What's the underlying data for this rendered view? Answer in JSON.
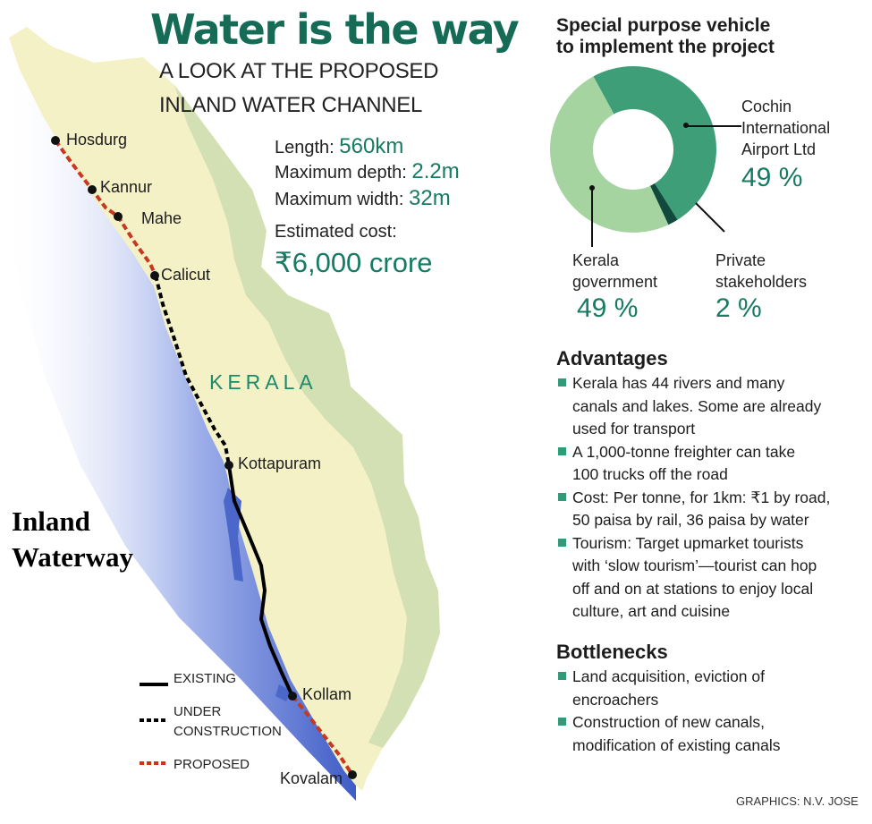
{
  "header": {
    "title": "Water is the way",
    "subtitle_line1": "A LOOK AT THE PROPOSED",
    "subtitle_line2": "INLAND WATER CHANNEL"
  },
  "stats": {
    "length_label": "Length:",
    "length_value": "560km",
    "depth_label": "Maximum depth:",
    "depth_value": "2.2m",
    "width_label": "Maximum width:",
    "width_value": "32m",
    "cost_label": "Estimated cost:",
    "cost_value": "₹6,000 crore"
  },
  "map": {
    "region_label": "KERALA",
    "towns": [
      "Hosdurg",
      "Kannur",
      "Mahe",
      "Calicut",
      "Kottapuram",
      "Kollam",
      "Kovalam"
    ],
    "overlay_line1": "Inland",
    "overlay_line2": "Waterway",
    "colors": {
      "land": "#f4f1c6",
      "hills": "#d3e0b4",
      "sea": "#4a67c9",
      "existing": "#000000",
      "under_construction": "#000000",
      "proposed": "#c8371f"
    }
  },
  "legend": {
    "existing": "EXISTING",
    "under_construction_line1": "UNDER",
    "under_construction_line2": "CONSTRUCTION",
    "proposed": "PROPOSED"
  },
  "spv": {
    "title_line1": "Special purpose vehicle",
    "title_line2": "to implement the project",
    "cial_line1": "Cochin",
    "cial_line2": "International",
    "cial_line3": "Airport Ltd",
    "cial_pct": "49 %",
    "kerala_line1": "Kerala",
    "kerala_line2": "government",
    "kerala_pct": "49 %",
    "private_line1": "Private",
    "private_line2": "stakeholders",
    "private_pct": "2 %",
    "shares": [
      {
        "name": "Cochin International Airport Ltd",
        "value": 49,
        "color": "#3d9e78"
      },
      {
        "name": "Private stakeholders",
        "value": 2,
        "color": "#114a3c"
      },
      {
        "name": "Kerala government",
        "value": 49,
        "color": "#a6d4a0"
      }
    ]
  },
  "advantages": {
    "heading": "Advantages",
    "items": [
      [
        "Kerala has 44 rivers and many",
        "canals and lakes. Some are already",
        "used for transport"
      ],
      [
        "A 1,000-tonne freighter can take",
        "100 trucks off the road"
      ],
      [
        "Cost: Per tonne, for 1km: ₹1 by road,",
        "50 paisa by rail, 36 paisa by water"
      ],
      [
        "Tourism: Target upmarket tourists",
        "with ‘slow tourism’—tourist can hop",
        "off and on at stations to enjoy local",
        "culture, art and cuisine"
      ]
    ]
  },
  "bottlenecks": {
    "heading": "Bottlenecks",
    "items": [
      [
        "Land acquisition, eviction of",
        "encroachers"
      ],
      [
        "Construction of new canals,",
        "modification of existing canals"
      ]
    ]
  },
  "credit": "GRAPHICS: N.V. JOSE"
}
